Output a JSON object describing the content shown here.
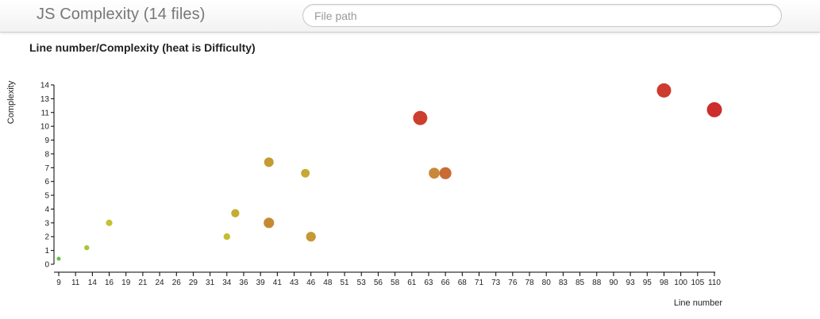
{
  "header": {
    "title": "JS Complexity (14 files)",
    "search_placeholder": "File path",
    "search_value": ""
  },
  "chart_data": {
    "type": "scatter",
    "title": "Line number/Complexity (heat is Difficulty)",
    "xlabel": "Line number",
    "ylabel": "Complexity",
    "x_ticks": [
      "9",
      "11",
      "14",
      "16",
      "19",
      "21",
      "24",
      "26",
      "29",
      "31",
      "34",
      "36",
      "39",
      "41",
      "43",
      "46",
      "48",
      "51",
      "53",
      "56",
      "58",
      "61",
      "63",
      "66",
      "68",
      "71",
      "73",
      "76",
      "78",
      "80",
      "83",
      "85",
      "88",
      "90",
      "93",
      "95",
      "98",
      "100",
      "105",
      "110"
    ],
    "y_ticks": [
      "0",
      "1",
      "2",
      "3",
      "4",
      "5",
      "6",
      "7",
      "8",
      "9",
      "10",
      "11",
      "13",
      "14"
    ],
    "grid": false,
    "points": [
      {
        "x": 9,
        "y": 0.4,
        "difficulty": 0.0,
        "color": "#67c23a"
      },
      {
        "x": 13,
        "y": 1.2,
        "difficulty": 0.1,
        "color": "#a5c63b"
      },
      {
        "x": 16,
        "y": 3.0,
        "difficulty": 0.22,
        "color": "#c2c231"
      },
      {
        "x": 34,
        "y": 2.0,
        "difficulty": 0.24,
        "color": "#c4bd30"
      },
      {
        "x": 35,
        "y": 3.7,
        "difficulty": 0.38,
        "color": "#c6ac31"
      },
      {
        "x": 40,
        "y": 7.4,
        "difficulty": 0.5,
        "color": "#c69a33"
      },
      {
        "x": 40,
        "y": 3.0,
        "difficulty": 0.58,
        "color": "#c48a33"
      },
      {
        "x": 45,
        "y": 6.6,
        "difficulty": 0.42,
        "color": "#c6a834"
      },
      {
        "x": 46,
        "y": 2.0,
        "difficulty": 0.52,
        "color": "#c69836"
      },
      {
        "x": 62,
        "y": 10.6,
        "difficulty": 0.92,
        "color": "#cc3e2e"
      },
      {
        "x": 64,
        "y": 6.6,
        "difficulty": 0.62,
        "color": "#c88a38"
      },
      {
        "x": 66,
        "y": 6.6,
        "difficulty": 0.72,
        "color": "#c86c34"
      },
      {
        "x": 98,
        "y": 13.6,
        "difficulty": 0.93,
        "color": "#cc3b2e"
      },
      {
        "x": 110,
        "y": 11.4,
        "difficulty": 1.0,
        "color": "#cc2e2e"
      }
    ]
  }
}
